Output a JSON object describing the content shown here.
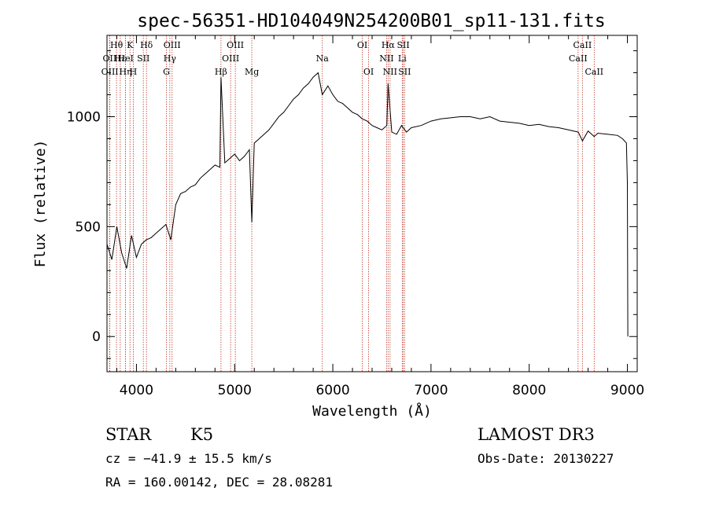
{
  "chart_data": {
    "type": "line",
    "title": "spec-56351-HD104049N254200B01_sp11-131.fits",
    "xlabel": "Wavelength (Å)",
    "ylabel": "Flux (relative)",
    "xlim": [
      3700,
      9100
    ],
    "ylim": [
      -160,
      1370
    ],
    "xticks": [
      4000,
      5000,
      6000,
      7000,
      8000,
      9000
    ],
    "yticks": [
      0,
      500,
      1000
    ],
    "x_tick_labels": [
      "4000",
      "5000",
      "6000",
      "7000",
      "8000",
      "9000"
    ],
    "y_tick_labels": [
      "0",
      "500",
      "1000"
    ],
    "series": [
      {
        "name": "flux",
        "x": [
          3700,
          3750,
          3800,
          3850,
          3900,
          3950,
          4000,
          4050,
          4100,
          4150,
          4200,
          4250,
          4300,
          4350,
          4400,
          4450,
          4500,
          4550,
          4600,
          4650,
          4700,
          4750,
          4800,
          4850,
          4861,
          4900,
          4950,
          5000,
          5050,
          5100,
          5150,
          5175,
          5200,
          5250,
          5300,
          5350,
          5400,
          5450,
          5500,
          5550,
          5600,
          5650,
          5700,
          5750,
          5800,
          5850,
          5893,
          5950,
          6000,
          6050,
          6100,
          6150,
          6200,
          6250,
          6300,
          6350,
          6400,
          6450,
          6500,
          6550,
          6563,
          6600,
          6650,
          6700,
          6750,
          6800,
          6900,
          7000,
          7100,
          7200,
          7300,
          7400,
          7500,
          7600,
          7700,
          7800,
          7900,
          8000,
          8100,
          8200,
          8300,
          8400,
          8500,
          8542,
          8600,
          8662,
          8700,
          8800,
          8900,
          8950,
          8990,
          9000,
          9005
        ],
        "y": [
          420,
          350,
          500,
          380,
          310,
          460,
          360,
          420,
          440,
          450,
          470,
          490,
          510,
          440,
          600,
          650,
          660,
          680,
          690,
          720,
          740,
          760,
          780,
          770,
          1180,
          790,
          810,
          830,
          800,
          820,
          850,
          520,
          880,
          900,
          920,
          940,
          970,
          1000,
          1020,
          1050,
          1080,
          1100,
          1130,
          1150,
          1180,
          1200,
          1100,
          1140,
          1100,
          1070,
          1060,
          1040,
          1020,
          1010,
          990,
          980,
          960,
          950,
          940,
          960,
          1150,
          930,
          920,
          960,
          930,
          950,
          960,
          980,
          990,
          995,
          1000,
          1000,
          990,
          1000,
          980,
          975,
          970,
          960,
          965,
          955,
          950,
          940,
          930,
          890,
          935,
          910,
          925,
          920,
          915,
          900,
          880,
          700,
          0
        ]
      }
    ],
    "spectral_lines": [
      {
        "label": "Hθ",
        "x": 3797,
        "row": 0
      },
      {
        "label": "OII",
        "x": 3727,
        "row": 1
      },
      {
        "label": "OIII",
        "x": 3729,
        "row": 2
      },
      {
        "label": "Hε",
        "x": 3835,
        "row": 1
      },
      {
        "label": "Hη",
        "x": 3889,
        "row": 2
      },
      {
        "label": "K",
        "x": 3934,
        "row": 0
      },
      {
        "label": "HeI",
        "x": 3889,
        "row": 1
      },
      {
        "label": "H",
        "x": 3968,
        "row": 2
      },
      {
        "label": "Hδ",
        "x": 4102,
        "row": 0
      },
      {
        "label": "SII",
        "x": 4070,
        "row": 1
      },
      {
        "label": "OIII",
        "x": 4363,
        "row": 0
      },
      {
        "label": "Hγ",
        "x": 4340,
        "row": 1
      },
      {
        "label": "G",
        "x": 4305,
        "row": 2
      },
      {
        "label": "OIII",
        "x": 5007,
        "row": 0
      },
      {
        "label": "OIII",
        "x": 4959,
        "row": 1
      },
      {
        "label": "Hβ",
        "x": 4861,
        "row": 2
      },
      {
        "label": "Mg",
        "x": 5175,
        "row": 2
      },
      {
        "label": "Na",
        "x": 5893,
        "row": 1
      },
      {
        "label": "OI",
        "x": 6300,
        "row": 0
      },
      {
        "label": "OI",
        "x": 6364,
        "row": 2
      },
      {
        "label": "Hα",
        "x": 6563,
        "row": 0
      },
      {
        "label": "NII",
        "x": 6548,
        "row": 1
      },
      {
        "label": "NII",
        "x": 6583,
        "row": 2
      },
      {
        "label": "SII",
        "x": 6717,
        "row": 0
      },
      {
        "label": "Li",
        "x": 6707,
        "row": 1
      },
      {
        "label": "SII",
        "x": 6731,
        "row": 2
      },
      {
        "label": "CaII",
        "x": 8542,
        "row": 0
      },
      {
        "label": "CaII",
        "x": 8498,
        "row": 1
      },
      {
        "label": "CaII",
        "x": 8662,
        "row": 2
      }
    ],
    "colors": {
      "spectrum": "#000000",
      "lines": "#c0392b",
      "axes": "#000000"
    }
  },
  "info": {
    "object_class": "STAR",
    "subclass": "K5",
    "survey": "LAMOST DR3",
    "cz": "cz = −41.9 ± 15.5 km/s",
    "obs_date": "Obs-Date: 20130227",
    "coords": "RA = 160.00142, DEC =  28.08281"
  }
}
